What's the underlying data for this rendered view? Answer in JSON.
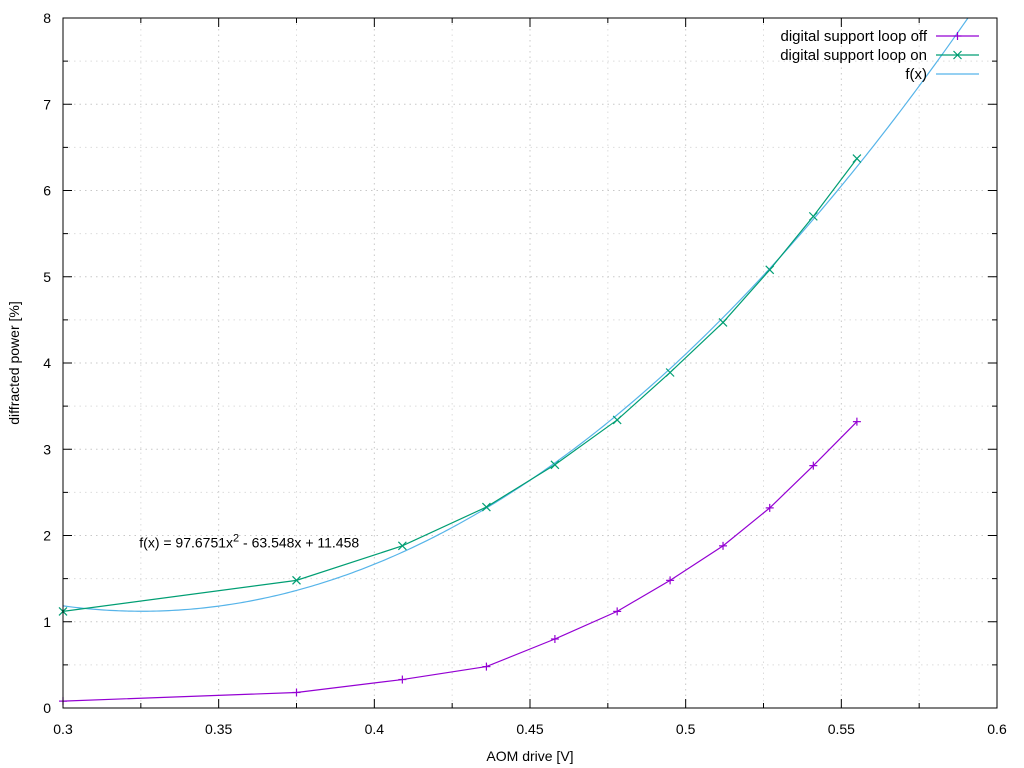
{
  "chart_data": {
    "type": "line",
    "title": "",
    "xlabel": "AOM drive [V]",
    "ylabel": "diffracted power [%]",
    "xlim": [
      0.3,
      0.6
    ],
    "ylim": [
      0,
      8
    ],
    "x_ticks": [
      0.3,
      0.35,
      0.4,
      0.45,
      0.5,
      0.55,
      0.6
    ],
    "x_tick_labels": [
      "0.3",
      "0.35",
      "0.4",
      "0.45",
      "0.5",
      "0.55",
      "0.6"
    ],
    "y_ticks": [
      0,
      1,
      2,
      3,
      4,
      5,
      6,
      7,
      8
    ],
    "y_tick_labels": [
      "0",
      "1",
      "2",
      "3",
      "4",
      "5",
      "6",
      "7",
      "8"
    ],
    "grid": true,
    "legend_position": "top-right",
    "series": [
      {
        "name": "digital support loop off",
        "color": "#9400d3",
        "marker": "plus",
        "x": [
          0.3,
          0.375,
          0.409,
          0.436,
          0.458,
          0.478,
          0.495,
          0.512,
          0.527,
          0.541,
          0.555
        ],
        "y": [
          0.08,
          0.18,
          0.33,
          0.48,
          0.8,
          1.12,
          1.48,
          1.88,
          2.32,
          2.81,
          3.32
        ]
      },
      {
        "name": "digital support loop on",
        "color": "#009e73",
        "marker": "cross",
        "x": [
          0.3,
          0.375,
          0.409,
          0.436,
          0.458,
          0.478,
          0.495,
          0.512,
          0.527,
          0.541,
          0.555
        ],
        "y": [
          1.12,
          1.48,
          1.88,
          2.33,
          2.82,
          3.34,
          3.89,
          4.47,
          5.08,
          5.7,
          6.37
        ]
      }
    ],
    "fit": {
      "name": "f(x)",
      "color": "#56b4e9",
      "a": 97.6751,
      "b": -63.548,
      "c": 11.458
    },
    "annotation": {
      "prefix": "f(x) = 97.6751x",
      "superscript": "2",
      "suffix": " - 63.548x + 11.458",
      "x": 0.3245,
      "y": 1.92
    }
  }
}
